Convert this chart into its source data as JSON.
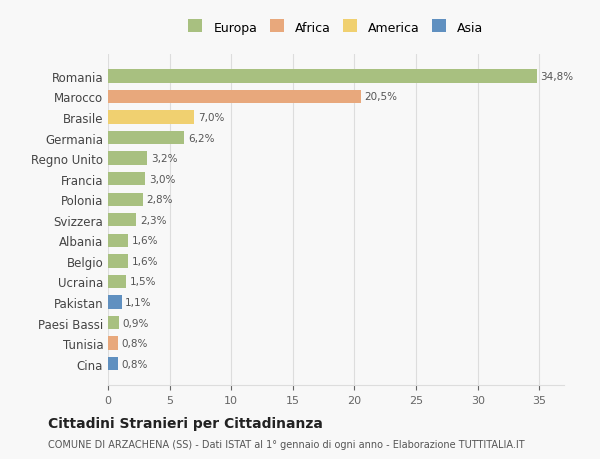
{
  "categories": [
    "Romania",
    "Marocco",
    "Brasile",
    "Germania",
    "Regno Unito",
    "Francia",
    "Polonia",
    "Svizzera",
    "Albania",
    "Belgio",
    "Ucraina",
    "Pakistan",
    "Paesi Bassi",
    "Tunisia",
    "Cina"
  ],
  "values": [
    34.8,
    20.5,
    7.0,
    6.2,
    3.2,
    3.0,
    2.8,
    2.3,
    1.6,
    1.6,
    1.5,
    1.1,
    0.9,
    0.8,
    0.8
  ],
  "labels": [
    "34,8%",
    "20,5%",
    "7,0%",
    "6,2%",
    "3,2%",
    "3,0%",
    "2,8%",
    "2,3%",
    "1,6%",
    "1,6%",
    "1,5%",
    "1,1%",
    "0,9%",
    "0,8%",
    "0,8%"
  ],
  "colors": [
    "#a8c080",
    "#e8a87c",
    "#f0d070",
    "#a8c080",
    "#a8c080",
    "#a8c080",
    "#a8c080",
    "#a8c080",
    "#a8c080",
    "#a8c080",
    "#a8c080",
    "#6090c0",
    "#a8c080",
    "#e8a87c",
    "#6090c0"
  ],
  "legend_labels": [
    "Europa",
    "Africa",
    "America",
    "Asia"
  ],
  "legend_colors": [
    "#a8c080",
    "#e8a87c",
    "#f0d070",
    "#6090c0"
  ],
  "title": "Cittadini Stranieri per Cittadinanza",
  "subtitle": "COMUNE DI ARZACHENA (SS) - Dati ISTAT al 1° gennaio di ogni anno - Elaborazione TUTTITALIA.IT",
  "xlim": [
    0,
    37
  ],
  "background_color": "#f8f8f8",
  "grid_color": "#dddddd"
}
